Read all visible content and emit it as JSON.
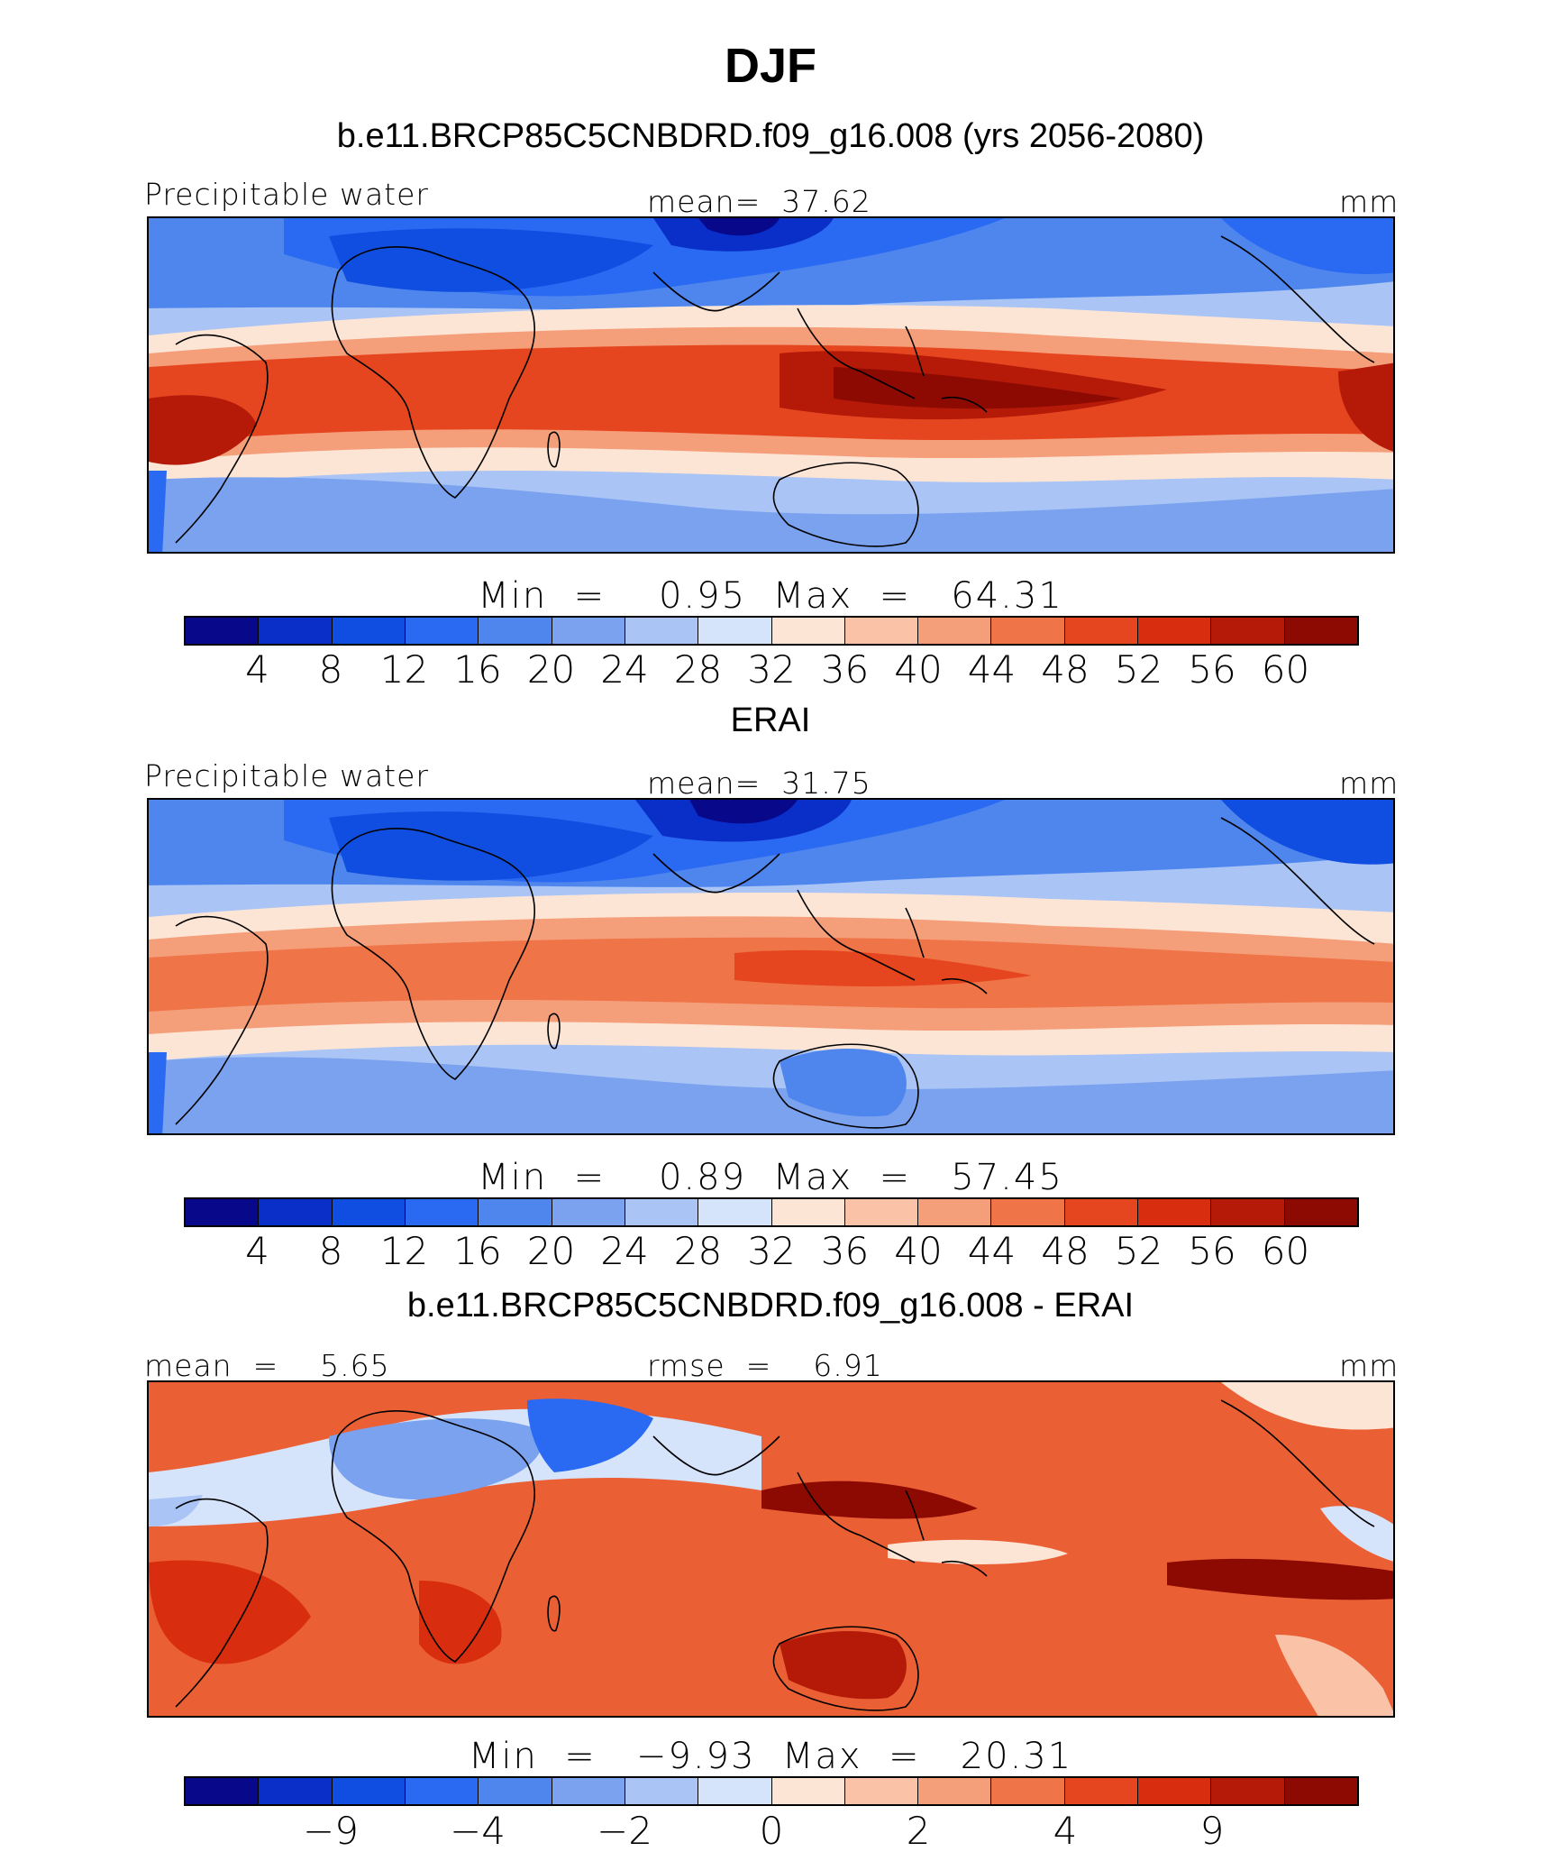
{
  "figure": {
    "season": "DJF"
  },
  "colors": [
    "#08088a",
    "#0a2ec8",
    "#0f4ee0",
    "#2a6af2",
    "#4f86ee",
    "#7aa2ef",
    "#a9c4f5",
    "#d6e4fb",
    "#fde5d6",
    "#fac3a8",
    "#f59e7a",
    "#ef7447",
    "#e6461f",
    "#d82e0f",
    "#b51a08",
    "#8c0a02"
  ],
  "panels": [
    {
      "title": "b.e11.BRCP85C5CNBDRD.f09_g16.008 (yrs 2056-2080)",
      "left_label": "Precipitable water",
      "center_label": "mean=  37.62",
      "right_label": "mm",
      "min_max": "Min  =    0.95  Max  =   64.31",
      "colorbar_ticks": [
        "4",
        "8",
        "12",
        "16",
        "20",
        "24",
        "28",
        "32",
        "36",
        "40",
        "44",
        "48",
        "52",
        "56",
        "60"
      ]
    },
    {
      "title": "ERAI",
      "left_label": "Precipitable water",
      "center_label": "mean=  31.75",
      "right_label": "mm",
      "min_max": "Min  =    0.89  Max  =   57.45",
      "colorbar_ticks": [
        "4",
        "8",
        "12",
        "16",
        "20",
        "24",
        "28",
        "32",
        "36",
        "40",
        "44",
        "48",
        "52",
        "56",
        "60"
      ]
    },
    {
      "title": "b.e11.BRCP85C5CNBDRD.f09_g16.008 - ERAI",
      "left_label": "mean  =    5.65",
      "center_label": "rmse  =    6.91",
      "right_label": "mm",
      "min_max": "Min  =   −9.93  Max  =   20.31",
      "colorbar_ticks": [
        "−9",
        "−4",
        "−2",
        "0",
        "2",
        "4",
        "9"
      ]
    }
  ]
}
